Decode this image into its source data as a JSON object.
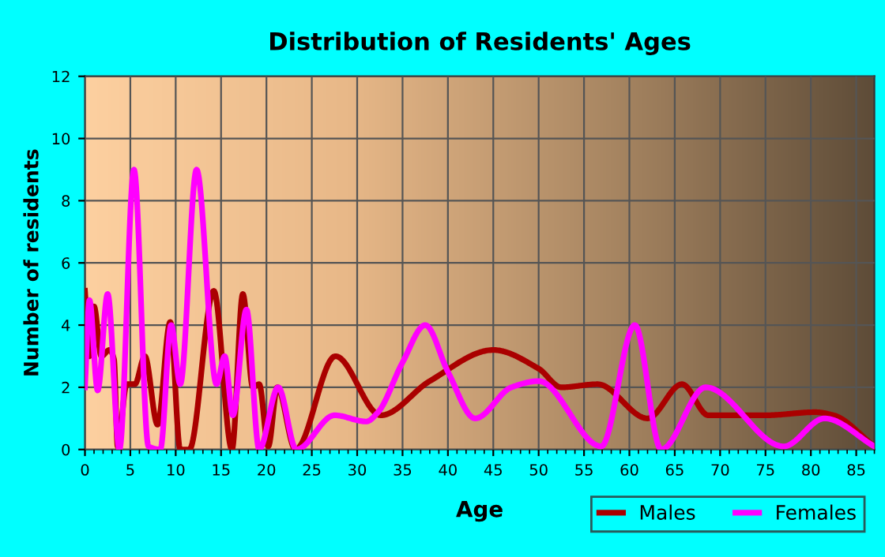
{
  "chart_data": {
    "type": "line",
    "title": "Distribution of Residents' Ages",
    "xlabel": "Age",
    "ylabel": "Number of residents",
    "xlim": [
      0,
      87
    ],
    "xticks": [
      0,
      5,
      10,
      15,
      20,
      25,
      30,
      35,
      40,
      45,
      50,
      55,
      60,
      65,
      70,
      75,
      80,
      85
    ],
    "ylim": [
      0,
      12
    ],
    "yticks": [
      0,
      2,
      4,
      6,
      8,
      10,
      12
    ],
    "grid": true,
    "legend": "bottom right",
    "marker": "none",
    "line_style": "solid",
    "series": [
      {
        "name": "Males",
        "color": "#aa0000",
        "x": [
          0,
          0.5,
          1,
          1.8,
          2.7,
          3.2,
          3.6,
          4.6,
          5.5,
          6.6,
          8,
          9.4,
          10.5,
          11.5,
          14.2,
          16.2,
          17.4,
          18.5,
          19.2,
          20.2,
          21.2,
          23.2,
          27.6,
          32.6,
          38,
          45,
          50,
          52.5,
          56.5,
          62,
          65.8,
          68.7,
          75,
          80.5,
          82.5,
          87
        ],
        "values": [
          5.1,
          3.0,
          4.6,
          3.0,
          3.2,
          2.9,
          0.1,
          2.1,
          2.1,
          3.0,
          0.8,
          4.1,
          0,
          0,
          5.1,
          0,
          5.0,
          2.0,
          2.1,
          0.1,
          2.0,
          0,
          3.0,
          1.1,
          2.2,
          3.2,
          2.6,
          2.0,
          2.1,
          1.0,
          2.1,
          1.1,
          1.1,
          1.2,
          1.1,
          0.1
        ]
      },
      {
        "name": "Females",
        "color": "#ff00ff",
        "x": [
          0,
          0.5,
          1.4,
          2.5,
          3.8,
          5.4,
          7.0,
          8.3,
          9.5,
          10.5,
          12.3,
          14.5,
          15.4,
          16.3,
          17.8,
          19.2,
          21.3,
          23.3,
          27.5,
          31,
          32.3,
          35,
          37.5,
          40,
          43,
          47,
          50,
          56.9,
          60.6,
          63.5,
          68.4,
          77,
          81.5,
          87
        ],
        "values": [
          2.0,
          4.8,
          1.9,
          5.0,
          0,
          9.0,
          0.1,
          0,
          4.0,
          2.1,
          9.0,
          2.1,
          3.0,
          1.1,
          4.5,
          0,
          2.0,
          0,
          1.1,
          0.9,
          1.2,
          2.8,
          4.0,
          2.5,
          1.0,
          2.0,
          2.2,
          0.1,
          4.0,
          0,
          2.0,
          0.1,
          1.0,
          0.1
        ]
      }
    ]
  }
}
